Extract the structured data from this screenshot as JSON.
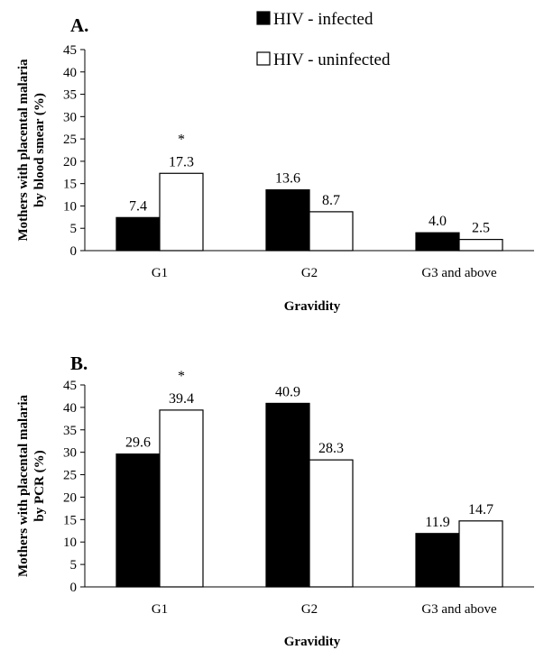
{
  "chart_data": [
    {
      "type": "bar",
      "panel": "A.",
      "categories": [
        "G1",
        "G2",
        "G3 and above"
      ],
      "series": [
        {
          "name": "HIV - infected",
          "values": [
            7.4,
            13.6,
            4.0
          ],
          "labels": [
            "7.4",
            "13.6",
            "4.0"
          ],
          "color": "#000000"
        },
        {
          "name": "HIV - uninfected",
          "values": [
            17.3,
            8.7,
            2.5
          ],
          "labels": [
            "17.3",
            "8.7",
            "2.5"
          ],
          "color": "#ffffff"
        }
      ],
      "annotations": [
        {
          "category": "G1",
          "series": 1,
          "text": "*"
        }
      ],
      "xlabel": "Gravidity",
      "ylabel": [
        "Mothers with placental malaria",
        "by blood smear (%)"
      ],
      "ylim": [
        0,
        45
      ],
      "yticks": [
        0,
        5,
        10,
        15,
        20,
        25,
        30,
        35,
        40,
        45
      ],
      "grid": false,
      "legend": "top-center"
    },
    {
      "type": "bar",
      "panel": "B.",
      "categories": [
        "G1",
        "G2",
        "G3 and above"
      ],
      "series": [
        {
          "name": "HIV - infected",
          "values": [
            29.6,
            40.9,
            11.9
          ],
          "labels": [
            "29.6",
            "40.9",
            "11.9"
          ],
          "color": "#000000"
        },
        {
          "name": "HIV - uninfected",
          "values": [
            39.4,
            28.3,
            14.7
          ],
          "labels": [
            "39.4",
            "28.3",
            "14.7"
          ],
          "color": "#ffffff"
        }
      ],
      "annotations": [
        {
          "category": "G1",
          "series": 1,
          "text": "*"
        }
      ],
      "xlabel": "Gravidity",
      "ylabel": [
        "Mothers with placental malaria",
        "by PCR (%)"
      ],
      "ylim": [
        0,
        45
      ],
      "yticks": [
        0,
        5,
        10,
        15,
        20,
        25,
        30,
        35,
        40,
        45
      ],
      "grid": false,
      "legend": "none"
    }
  ]
}
